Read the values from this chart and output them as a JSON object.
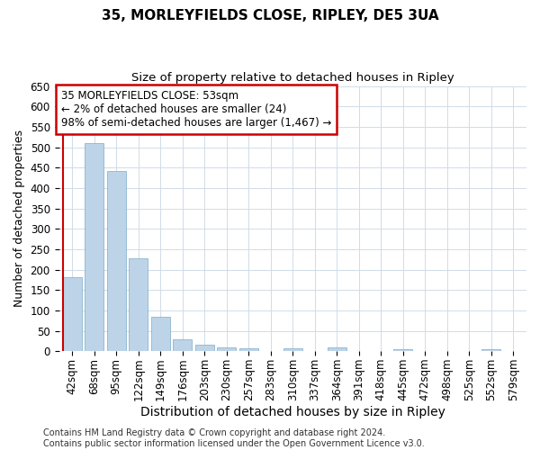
{
  "title": "35, MORLEYFIELDS CLOSE, RIPLEY, DE5 3UA",
  "subtitle": "Size of property relative to detached houses in Ripley",
  "xlabel": "Distribution of detached houses by size in Ripley",
  "ylabel": "Number of detached properties",
  "categories": [
    "42sqm",
    "68sqm",
    "95sqm",
    "122sqm",
    "149sqm",
    "176sqm",
    "203sqm",
    "230sqm",
    "257sqm",
    "283sqm",
    "310sqm",
    "337sqm",
    "364sqm",
    "391sqm",
    "418sqm",
    "445sqm",
    "472sqm",
    "498sqm",
    "525sqm",
    "552sqm",
    "579sqm"
  ],
  "values": [
    182,
    510,
    442,
    228,
    85,
    28,
    15,
    9,
    7,
    0,
    7,
    0,
    9,
    0,
    0,
    5,
    0,
    0,
    0,
    5,
    0
  ],
  "bar_color": "#bdd4e8",
  "bar_edge_color": "#7aaac8",
  "grid_color": "#d0dce8",
  "annotation_box_text1": "35 MORLEYFIELDS CLOSE: 53sqm",
  "annotation_box_text2": "← 2% of detached houses are smaller (24)",
  "annotation_box_text3": "98% of semi-detached houses are larger (1,467) →",
  "annotation_box_color": "#ffffff",
  "annotation_box_edge_color": "#cc0000",
  "annotation_line_color": "#cc0000",
  "footer_text": "Contains HM Land Registry data © Crown copyright and database right 2024.\nContains public sector information licensed under the Open Government Licence v3.0.",
  "ylim": [
    0,
    650
  ],
  "yticks": [
    0,
    50,
    100,
    150,
    200,
    250,
    300,
    350,
    400,
    450,
    500,
    550,
    600,
    650
  ],
  "background_color": "#ffffff",
  "plot_background_color": "#ffffff",
  "title_fontsize": 11,
  "subtitle_fontsize": 9.5,
  "xlabel_fontsize": 10,
  "ylabel_fontsize": 9,
  "tick_fontsize": 8.5,
  "annotation_fontsize": 8.5,
  "footer_fontsize": 7
}
